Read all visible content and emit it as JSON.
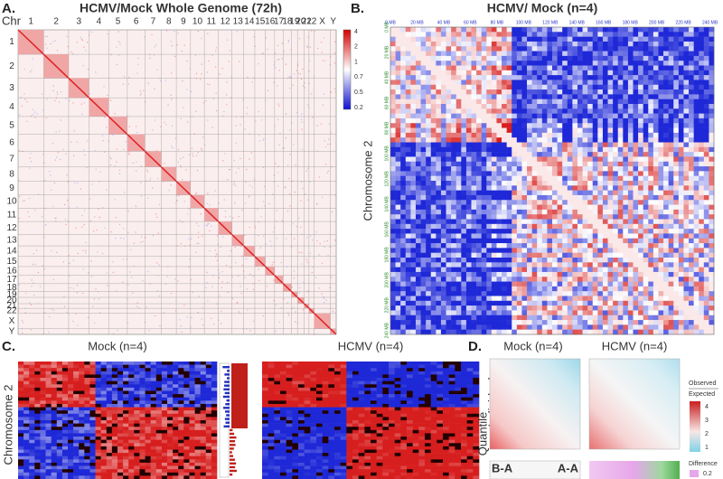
{
  "panels": [
    {
      "letter": "A.",
      "title": "HCMV/Mock Whole Genome (72h)",
      "corner": "Chr",
      "chromosomes": [
        "1",
        "2",
        "3",
        "4",
        "5",
        "6",
        "7",
        "8",
        "9",
        "10",
        "11",
        "12",
        "13",
        "14",
        "15",
        "16",
        "17",
        "18",
        "19",
        "20",
        "21",
        "22",
        "X",
        "Y"
      ],
      "colorbar_ticks": [
        "4",
        "2",
        "1",
        "0.7",
        "0.5",
        "0.2"
      ]
    },
    {
      "letter": "B.",
      "title": "HCMV/ Mock (n=4)",
      "ylabel": "Chromosome 2",
      "axis_ticks": [
        "0 MB",
        "20 MB",
        "40 MB",
        "60 MB",
        "80 MB",
        "100 MB",
        "120 MB",
        "140 MB",
        "160 MB",
        "180 MB",
        "200 MB",
        "220 MB",
        "240 MB"
      ]
    },
    {
      "letter": "C.",
      "titles": [
        "Mock (n=4)",
        "HCMV (n=4)"
      ],
      "ylabel": "Chromosome 2"
    },
    {
      "letter": "D.",
      "titles": [
        "Mock (n=4)",
        "HCMV (n=4)"
      ],
      "ylabel": [
        "Quantile",
        "Individual"
      ],
      "legend_title": [
        "Observed",
        "Expected"
      ],
      "legend_ticks": [
        "4",
        "3",
        "2",
        "1"
      ],
      "labels": [
        "B-A",
        "A-A"
      ],
      "difference": "Difference",
      "difference_tick": "0.2"
    }
  ]
}
